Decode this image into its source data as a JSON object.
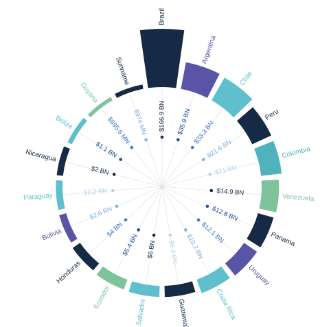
{
  "chart_data": {
    "type": "radial-bar",
    "title": "",
    "unit_note": "",
    "items": [
      {
        "country": "Brazil",
        "value": 166.9,
        "label": "$166.9 BN",
        "color": "#162945"
      },
      {
        "country": "Argentina",
        "value": 35.9,
        "label": "$35.9 BN",
        "color": "#5954a6"
      },
      {
        "country": "Chile",
        "value": 33.3,
        "label": "$33.3 BN",
        "color": "#5fbfcc"
      },
      {
        "country": "Peru",
        "value": 21.6,
        "label": "$21.6 BN",
        "color": "#162945"
      },
      {
        "country": "Colombia",
        "value": 21,
        "label": "$21 BN",
        "color": "#4fb3be"
      },
      {
        "country": "Venezuela",
        "value": 14.9,
        "label": "$14.9 BN",
        "color": "#7ec39b"
      },
      {
        "country": "Panama",
        "value": 12.8,
        "label": "$12.8 BN",
        "color": "#162945"
      },
      {
        "country": "Uruguay",
        "value": 12.1,
        "label": "$12.1 BN",
        "color": "#5954a6"
      },
      {
        "country": "Costa Rica",
        "value": 10.2,
        "label": "$10.2 BN",
        "color": "#5fbfcc"
      },
      {
        "country": "Guatemala",
        "value": 6.1,
        "label": "$6.1 BN",
        "color": "#162945"
      },
      {
        "country": "El Salvador",
        "value": 6,
        "label": "$6 BN",
        "color": "#5fbfcc"
      },
      {
        "country": "Ecuador",
        "value": 5.4,
        "label": "$5.4 BN",
        "color": "#7ec39b"
      },
      {
        "country": "Honduras",
        "value": 4,
        "label": "$4 BN",
        "color": "#162945"
      },
      {
        "country": "Bolivia",
        "value": 2.6,
        "label": "$2.6 BN",
        "color": "#5954a6"
      },
      {
        "country": "Paraguay",
        "value": 2.2,
        "label": "$2.2 BN",
        "color": "#5fbfcc"
      },
      {
        "country": "Nicaragua",
        "value": 2,
        "label": "$2 BN",
        "color": "#162945"
      },
      {
        "country": "Belize",
        "value": 1.1,
        "label": "$1.1 BN",
        "color": "#5fbfcc"
      },
      {
        "country": "Guyana",
        "value": 0.6955,
        "label": "$695.5 MN",
        "color": "#7ec39b"
      },
      {
        "country": "Suriname",
        "value": 0.974,
        "label": "$974 MN",
        "color": "#162945"
      }
    ],
    "value_label_colors": [
      "#162945",
      "#1f4f9c",
      "#3a78c7",
      "#7fb3e0",
      "#b6d3ee"
    ]
  }
}
